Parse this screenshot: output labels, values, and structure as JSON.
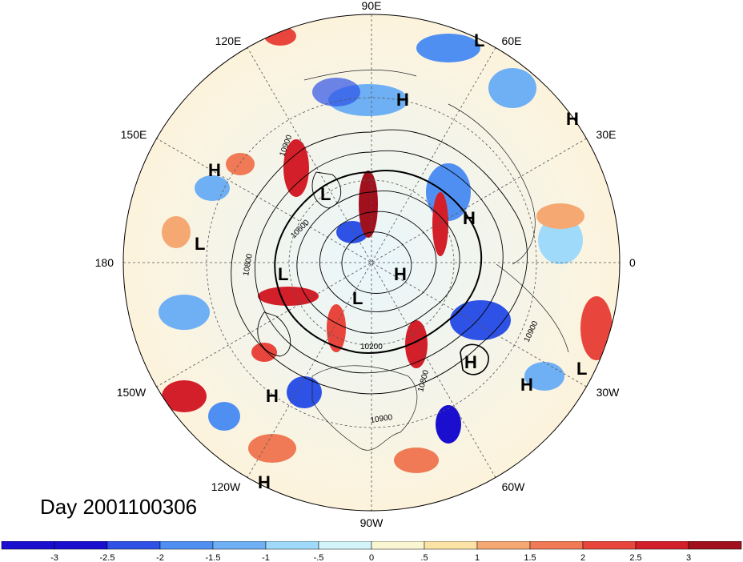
{
  "title": "Day 2001100306",
  "longitude_labels": [
    "90E",
    "60E",
    "30E",
    "0",
    "30W",
    "60W",
    "90W",
    "120W",
    "150W",
    "180",
    "150E",
    "120E"
  ],
  "contour_labels": [
    "10900",
    "10600",
    "10800",
    "10200",
    "10800",
    "10900",
    "10900"
  ],
  "pressure_centers": [
    "L",
    "H",
    "H",
    "H",
    "L",
    "L",
    "H",
    "L",
    "H",
    "L",
    "H",
    "H",
    "L",
    "H",
    "H"
  ],
  "colorbar": {
    "ticks": [
      "-3",
      "-2.5",
      "-2",
      "-1.5",
      "-1",
      "-.5",
      "0",
      ".5",
      "1",
      "1.5",
      "2",
      "2.5",
      "3"
    ],
    "colors": [
      "#1a0fcf",
      "#2e52e6",
      "#4f8ff2",
      "#6fb0f5",
      "#9fdafa",
      "#d4f4fb",
      "#fbf6d2",
      "#fbe3a6",
      "#f5a872",
      "#ef7a55",
      "#e8463d",
      "#d31f2a",
      "#a0101d"
    ]
  }
}
